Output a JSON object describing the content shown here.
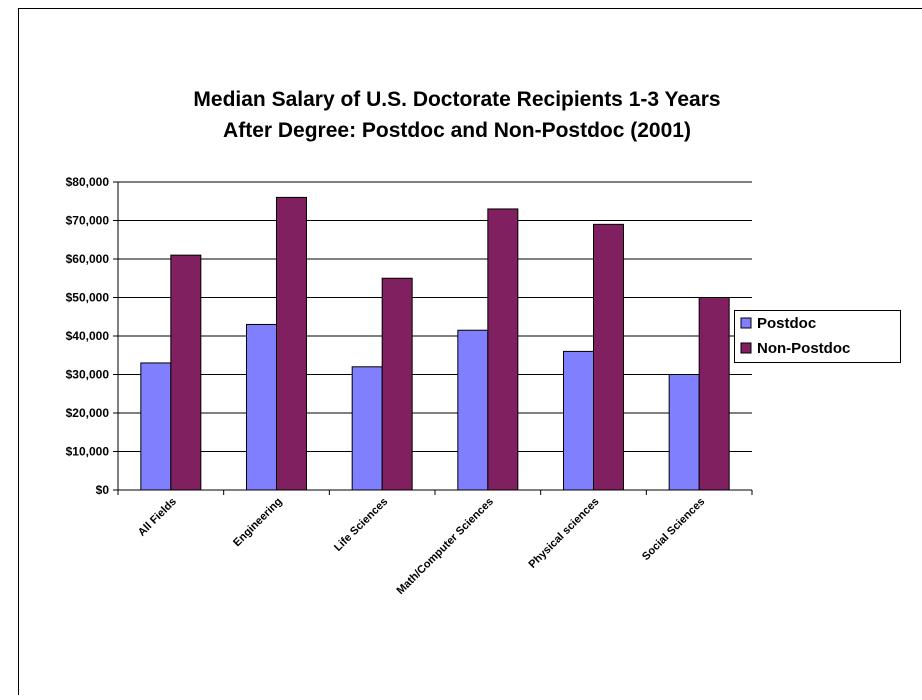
{
  "chart_data": {
    "type": "bar",
    "title": [
      "Median Salary of U.S. Doctorate Recipients 1-3 Years",
      "After Degree: Postdoc and Non-Postdoc (2001)"
    ],
    "categories": [
      "All Fields",
      "Engineering",
      "Life Sciences",
      "Math/Computer Sciences",
      "Physical sciences",
      "Social Sciences"
    ],
    "series": [
      {
        "name": "Postdoc",
        "color": "#8080ff",
        "values": [
          33000,
          43000,
          32000,
          41500,
          36000,
          30000
        ]
      },
      {
        "name": "Non-Postdoc",
        "color": "#802060",
        "values": [
          61000,
          76000,
          55000,
          73000,
          69000,
          50000
        ]
      }
    ],
    "ylim": [
      0,
      80000
    ],
    "yticks": [
      {
        "value": 0,
        "label": "$0"
      },
      {
        "value": 10000,
        "label": "$10,000"
      },
      {
        "value": 20000,
        "label": "$20,000"
      },
      {
        "value": 30000,
        "label": "$30,000"
      },
      {
        "value": 40000,
        "label": "$40,000"
      },
      {
        "value": 50000,
        "label": "$50,000"
      },
      {
        "value": 60000,
        "label": "$60,000"
      },
      {
        "value": 70000,
        "label": "$70,000"
      },
      {
        "value": 80000,
        "label": "$80,000"
      }
    ],
    "grid": true,
    "legend": "right"
  }
}
